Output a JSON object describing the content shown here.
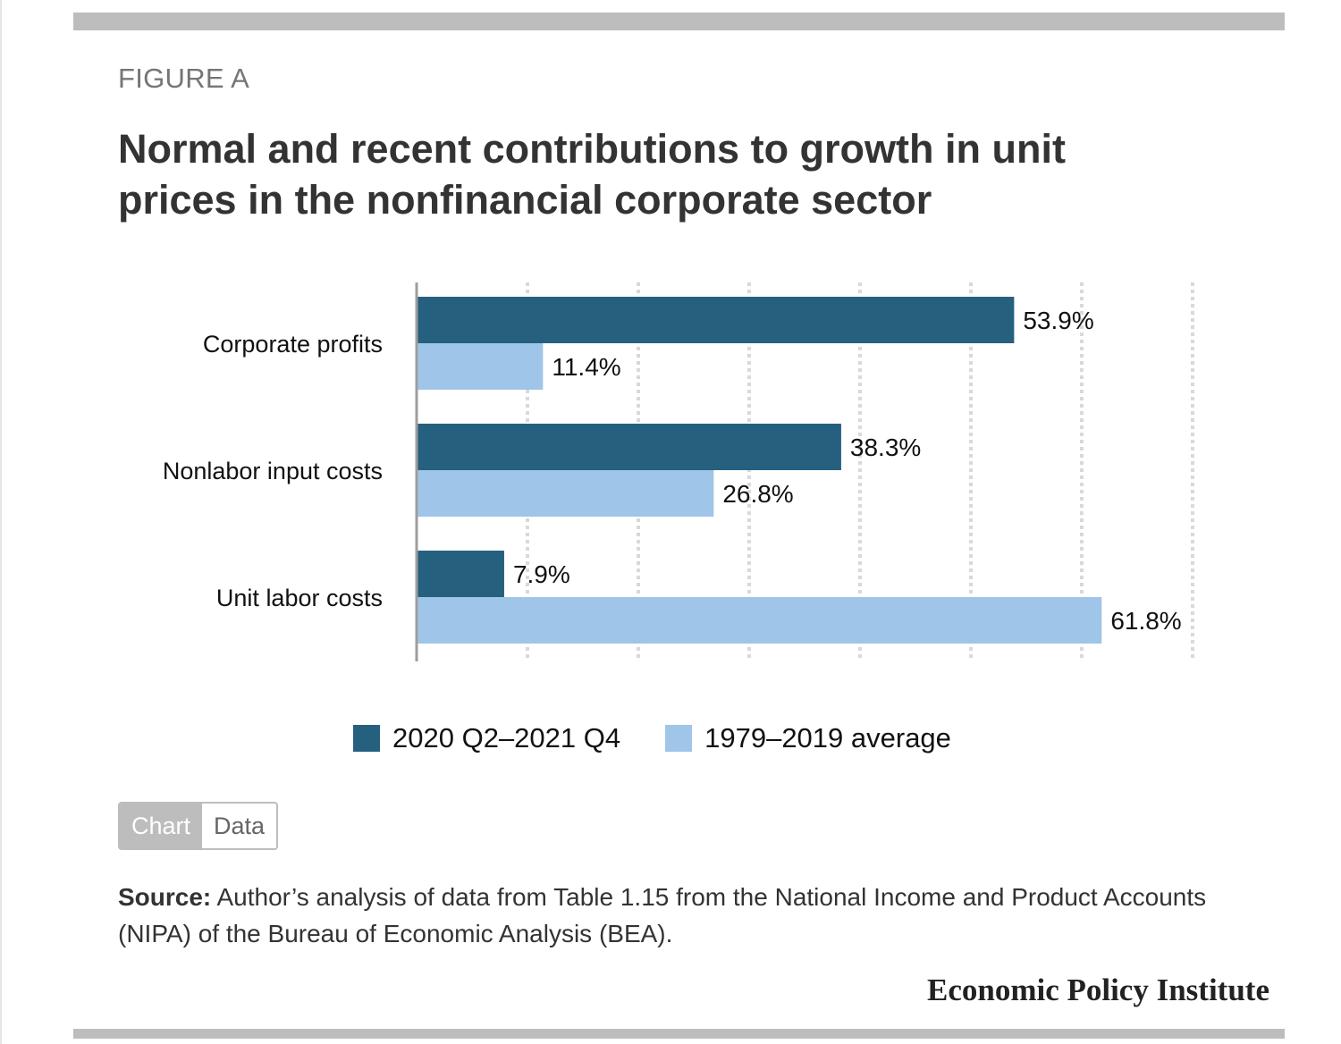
{
  "figure_label": "FIGURE A",
  "title": "Normal and recent contributions to growth in unit prices in the nonfinancial corporate sector",
  "legend": {
    "series_1": "2020 Q2–2021 Q4",
    "series_2": "1979–2019 average"
  },
  "toggle": {
    "chart": "Chart",
    "data": "Data"
  },
  "source": {
    "label": "Source:",
    "text": "Author’s analysis of data from Table 1.15 from the National Income and Product Accounts (NIPA) of the Bureau of Economic Analysis (BEA)."
  },
  "brand": "Economic Policy Institute",
  "colors": {
    "series_1": "#26607f",
    "series_2": "#9fc5e8",
    "grid": "#d9d9d9",
    "axis": "#9e9e9e"
  },
  "chart_data": {
    "type": "bar",
    "orientation": "horizontal",
    "categories": [
      "Corporate profits",
      "Nonlabor input costs",
      "Unit labor costs"
    ],
    "series": [
      {
        "name": "2020 Q2–2021 Q4",
        "values": [
          53.9,
          38.3,
          7.9
        ],
        "labels": [
          "53.9%",
          "38.3%",
          "7.9%"
        ]
      },
      {
        "name": "1979–2019 average",
        "values": [
          11.4,
          26.8,
          61.8
        ],
        "labels": [
          "11.4%",
          "26.8%",
          "61.8%"
        ]
      }
    ],
    "xlim": [
      0,
      70
    ],
    "grid": true,
    "legend_position": "bottom"
  }
}
